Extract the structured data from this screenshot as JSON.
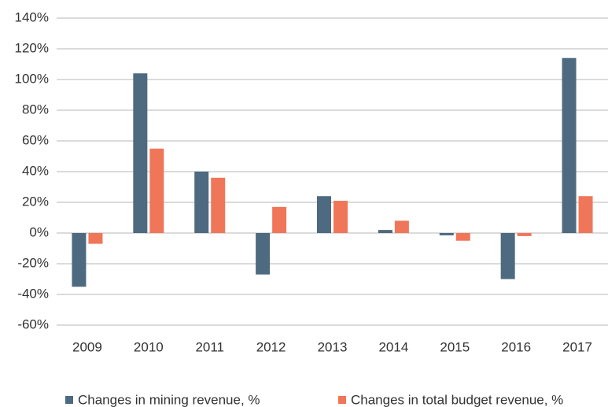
{
  "chart_data": {
    "type": "bar",
    "categories": [
      "2009",
      "2010",
      "2011",
      "2012",
      "2013",
      "2014",
      "2015",
      "2016",
      "2017"
    ],
    "series": [
      {
        "name": "Changes in mining revenue, %",
        "color": "#4d6a80",
        "values": [
          -35,
          104,
          40,
          -27,
          24,
          2,
          -1.5,
          -30,
          114
        ]
      },
      {
        "name": "Changes in total budget revenue, %",
        "color": "#f0765a",
        "values": [
          -7,
          55,
          36,
          17,
          21,
          8,
          -5,
          -2,
          24
        ]
      }
    ],
    "ylim": [
      -60,
      140
    ],
    "yticks": [
      {
        "value": -60,
        "label": "-60%"
      },
      {
        "value": -40,
        "label": "-40%"
      },
      {
        "value": -20,
        "label": "-20%"
      },
      {
        "value": 0,
        "label": "0%"
      },
      {
        "value": 20,
        "label": "20%"
      },
      {
        "value": 40,
        "label": "40%"
      },
      {
        "value": 60,
        "label": "60%"
      },
      {
        "value": 80,
        "label": "80%"
      },
      {
        "value": 100,
        "label": "100%"
      },
      {
        "value": 120,
        "label": "120%"
      },
      {
        "value": 140,
        "label": "140%"
      }
    ],
    "grid": true,
    "legend": "bottom"
  }
}
